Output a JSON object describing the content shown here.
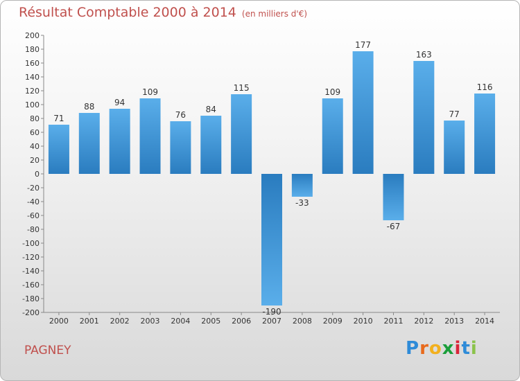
{
  "title": "Résultat Comptable 2000 à 2014",
  "subtitle": "(en milliers d'€)",
  "commune": "PAGNEY",
  "logo": {
    "letters": [
      "P",
      "r",
      "o",
      "x",
      "i",
      "t",
      "i"
    ],
    "colors": [
      "#2e8bd8",
      "#e86a1c",
      "#f2b01e",
      "#1a9e3a",
      "#d9263a",
      "#2e8bd8",
      "#8bc34a"
    ]
  },
  "chart_data": {
    "type": "bar",
    "categories": [
      "2000",
      "2001",
      "2002",
      "2003",
      "2004",
      "2005",
      "2006",
      "2007",
      "2008",
      "2009",
      "2010",
      "2011",
      "2012",
      "2013",
      "2014"
    ],
    "values": [
      71,
      88,
      94,
      109,
      76,
      84,
      115,
      -190,
      -33,
      109,
      177,
      -67,
      163,
      77,
      116
    ],
    "ylim": [
      -200,
      200
    ],
    "ytick_step": 20,
    "grid": false,
    "bar_color_light": "#5aaeea",
    "bar_color_dark": "#2a7cbf",
    "label_color": "#333333",
    "axis_color": "#888888"
  }
}
